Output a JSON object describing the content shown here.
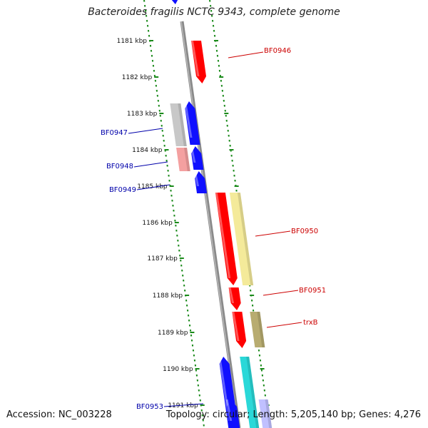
{
  "title": "Bacteroides fragilis NCTC 9343, complete genome",
  "accession_text": "Accession: NC_003228",
  "summary_text": "Topology: circular; Length: 5,205,140 bp; Genes: 4,276",
  "ruler": {
    "unit": "kbp",
    "ticks": [
      "1181 kbp",
      "1182 kbp",
      "1183 kbp",
      "1184 kbp",
      "1185 kbp",
      "1186 kbp",
      "1187 kbp",
      "1188 kbp",
      "1189 kbp",
      "1190 kbp",
      "1191 kbp"
    ]
  },
  "colors": {
    "backbone": "#8a8a8a",
    "ruler_dots": "#1a8a1a",
    "forward_label": "#cc0000",
    "reverse_label": "#0000aa"
  },
  "features": [
    {
      "name": "BF0946",
      "strand": "forward",
      "color": "#ff0000",
      "labeled": true
    },
    {
      "name": "BF0947",
      "strand": "reverse",
      "color": "#1010ff",
      "labeled": true
    },
    {
      "name": "BF0948",
      "strand": "reverse",
      "color": "#1010ff",
      "labeled": true
    },
    {
      "name": "BF0949",
      "strand": "reverse",
      "color": "#1010ff",
      "labeled": true
    },
    {
      "name": "BF0950",
      "strand": "forward",
      "color": "#ff0000",
      "labeled": true
    },
    {
      "name": "BF0951",
      "strand": "forward",
      "color": "#ff0000",
      "labeled": true
    },
    {
      "name": "trxB",
      "strand": "forward",
      "color": "#ff0000",
      "labeled": true
    },
    {
      "name": "BF0953",
      "strand": "reverse",
      "color": "#1010ff",
      "labeled": true
    },
    {
      "name": "",
      "strand": "reverse",
      "color": "#1010ff",
      "labeled": false
    },
    {
      "name": "",
      "strand": "reverse",
      "color": "#1010ff",
      "labeled": false
    }
  ],
  "annotations": [
    {
      "name": "cog-grey-box",
      "color": "#c8c8c8"
    },
    {
      "name": "cog-pink-box",
      "color": "#f4a0a0"
    },
    {
      "name": "cog-yellow-box",
      "color": "#f4ea9a"
    },
    {
      "name": "cog-olive-box",
      "color": "#b8ac70"
    },
    {
      "name": "cog-cyan-box",
      "color": "#2ad8d8"
    },
    {
      "name": "cog-lavender-box",
      "color": "#c0c0ff"
    }
  ]
}
